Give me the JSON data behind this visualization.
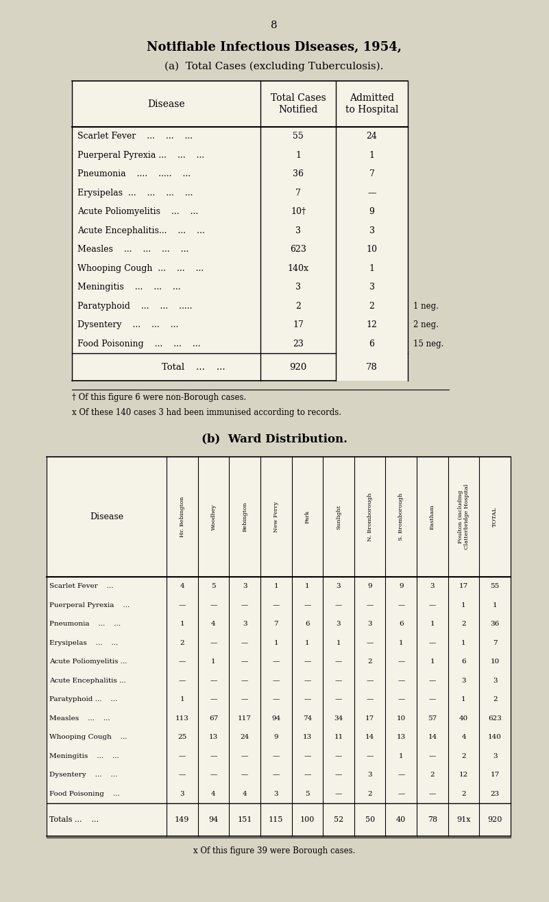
{
  "bg_color": "#d8d4c4",
  "table_bg": "#f0ede4",
  "page_number": "8",
  "title_line1": "Notifiable Infectious Diseases, 1954,",
  "title_line2": "(a)  Total Cases (excluding Tuberculosis).",
  "table_a_rows": [
    [
      "Scarlet Fever    ...    ...    ...",
      "55",
      "24"
    ],
    [
      "Puerperal Pyrexia ...    ...    ...",
      "1",
      "1"
    ],
    [
      "Pneumonia    ....    .....    ...",
      "36",
      "7"
    ],
    [
      "Erysipelas  ...    ...    ...    ...",
      "7",
      "—"
    ],
    [
      "Acute Poliomyelitis    ...    ...",
      "10†",
      "9"
    ],
    [
      "Acute Encephalitis...    ...    ...",
      "3",
      "3"
    ],
    [
      "Measles    ...    ...    ...    ...",
      "623",
      "10"
    ],
    [
      "Whooping Cough  ...    ...    ...",
      "140x",
      "1"
    ],
    [
      "Meningitis    ...    ...    ...",
      "3",
      "3"
    ],
    [
      "Paratyphoid    ...    ...    .....",
      "2",
      "2"
    ],
    [
      "Dysentery    ...    ...    ...",
      "17",
      "12"
    ],
    [
      "Food Poisoning    ...    ...    ...",
      "23",
      "6"
    ]
  ],
  "table_a_notes_right": [
    "",
    "",
    "",
    "",
    "",
    "",
    "",
    "",
    "",
    "1 neg.",
    "2 neg.",
    "15 neg."
  ],
  "table_a_total_row": [
    "Total    ...    ...",
    "920",
    "78"
  ],
  "footnote1": "† Of this figure 6 were non-Borough cases.",
  "footnote2": "x Of these 140 cases 3 had been immunised according to records.",
  "title_b": "(b)  Ward Distribution.",
  "table_b_col_headers": [
    "Hr. Bebington",
    "Woodhey",
    "Bebington",
    "New Ferry",
    "Park",
    "Sunlight",
    "N. Bromborough",
    "S. Bromborough",
    "Eastham",
    "Poulton (including\nClatterbridge Hospital",
    "TOTAL"
  ],
  "table_b_rows": [
    [
      "Scarlet Fever    ...",
      "4",
      "5",
      "3",
      "1",
      "1",
      "3",
      "9",
      "9",
      "3",
      "17",
      "55"
    ],
    [
      "Puerperal Pyrexia    ...",
      "—",
      "—",
      "—",
      "—",
      "—",
      "—",
      "—",
      "—",
      "—",
      "1",
      "1"
    ],
    [
      "Pneumonia    ...    ...",
      "1",
      "4",
      "3",
      "7",
      "6",
      "3",
      "3",
      "6",
      "1",
      "2",
      "36"
    ],
    [
      "Erysipelas    ...    ...",
      "2",
      "—",
      "—",
      "1",
      "1",
      "1",
      "—",
      "1",
      "—",
      "1",
      "7"
    ],
    [
      "Acute Poliomyelitis ...",
      "—",
      "1",
      "—",
      "—",
      "—",
      "—",
      "2",
      "—",
      "1",
      "6",
      "10"
    ],
    [
      "Acute Encephalitis ...",
      "—",
      "—",
      "—",
      "—",
      "—",
      "—",
      "—",
      "—",
      "—",
      "3",
      "3"
    ],
    [
      "Paratyphoid ...    ...",
      "1",
      "—",
      "—",
      "—",
      "—",
      "—",
      "—",
      "—",
      "—",
      "1",
      "2"
    ],
    [
      "Measles    ...    ...",
      "113",
      "67",
      "117",
      "94",
      "74",
      "34",
      "17",
      "10",
      "57",
      "40",
      "623"
    ],
    [
      "Whooping Cough    ...",
      "25",
      "13",
      "24",
      "9",
      "13",
      "11",
      "14",
      "13",
      "14",
      "4",
      "140"
    ],
    [
      "Meningitis    ...    ...",
      "—",
      "—",
      "—",
      "—",
      "—",
      "—",
      "—",
      "1",
      "—",
      "2",
      "3"
    ],
    [
      "Dysentery    ...    ...",
      "—",
      "—",
      "—",
      "—",
      "—",
      "—",
      "3",
      "—",
      "2",
      "12",
      "17"
    ],
    [
      "Food Poisoning    ...",
      "3",
      "4",
      "4",
      "3",
      "5",
      "—",
      "2",
      "—",
      "—",
      "2",
      "23"
    ]
  ],
  "table_b_total_row": [
    "Totals ...    ...",
    "149",
    "94",
    "151",
    "115",
    "100",
    "52",
    "50",
    "40",
    "78",
    "91x",
    "920"
  ],
  "footnote_b": "x Of this figure 39 were Borough cases."
}
